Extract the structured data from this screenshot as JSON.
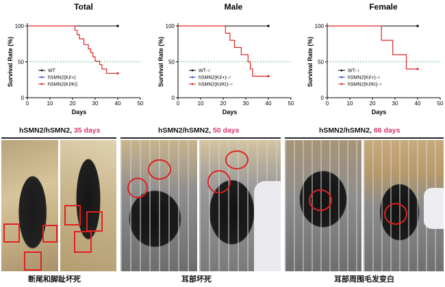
{
  "chart_data": [
    {
      "type": "line",
      "title": "Total",
      "xlabel": "Days",
      "ylabel": "Survival Rate (%)",
      "xlim": [
        0,
        50
      ],
      "ylim": [
        0,
        100
      ],
      "xticks": [
        0,
        10,
        20,
        30,
        40,
        50
      ],
      "yticks": [
        0,
        50,
        100
      ],
      "reference_line": 50,
      "series": [
        {
          "name": "WT",
          "color": "#000000",
          "x": [
            0,
            40
          ],
          "y": [
            100,
            100
          ]
        },
        {
          "name": "hSMN2(KI/+)",
          "color": "#2b4acb",
          "x": [
            0,
            40
          ],
          "y": [
            100,
            100
          ]
        },
        {
          "name": "hSMN2(KI/KI)",
          "color": "#e02020",
          "x": [
            0,
            20,
            21,
            22,
            23,
            25,
            27,
            28,
            29,
            30,
            32,
            33,
            35,
            40
          ],
          "y": [
            100,
            100,
            94,
            88,
            82,
            74,
            68,
            63,
            57,
            51,
            46,
            40,
            34,
            34
          ]
        }
      ]
    },
    {
      "type": "line",
      "title": "Male",
      "xlabel": "Days",
      "ylabel": "Survival Rate (%)",
      "xlim": [
        0,
        50
      ],
      "ylim": [
        0,
        100
      ],
      "xticks": [
        0,
        10,
        20,
        30,
        40,
        50
      ],
      "yticks": [
        0,
        50,
        100
      ],
      "reference_line": 50,
      "series": [
        {
          "name": "WT-♂",
          "color": "#000000",
          "x": [
            0,
            40
          ],
          "y": [
            100,
            100
          ]
        },
        {
          "name": "hSMN2(KI/+)-♂",
          "color": "#2b4acb",
          "x": [
            0,
            40
          ],
          "y": [
            100,
            100
          ]
        },
        {
          "name": "hSMN2(KI/KI)-♂",
          "color": "#e02020",
          "x": [
            0,
            20,
            21,
            23,
            25,
            28,
            31,
            32,
            33,
            35,
            40
          ],
          "y": [
            100,
            100,
            90,
            80,
            70,
            60,
            50,
            40,
            30,
            30,
            30
          ]
        }
      ]
    },
    {
      "type": "line",
      "title": "Female",
      "xlabel": "Days",
      "ylabel": "Survival Rate (%)",
      "xlim": [
        0,
        50
      ],
      "ylim": [
        0,
        100
      ],
      "xticks": [
        0,
        10,
        20,
        30,
        40,
        50
      ],
      "yticks": [
        0,
        50,
        100
      ],
      "reference_line": 50,
      "series": [
        {
          "name": "WT-♀",
          "color": "#000000",
          "x": [
            0,
            40
          ],
          "y": [
            100,
            100
          ]
        },
        {
          "name": "hSMN2(KI/+)-♀",
          "color": "#2b4acb",
          "x": [
            0,
            40
          ],
          "y": [
            100,
            100
          ]
        },
        {
          "name": "hSMN2(KI/KI)-♀",
          "color": "#e02020",
          "x": [
            0,
            23,
            24,
            29,
            35,
            40
          ],
          "y": [
            100,
            100,
            80,
            60,
            40,
            40
          ]
        }
      ]
    }
  ],
  "captions": [
    {
      "prefix": "hSMN2/hSMN2, ",
      "days": "35 days"
    },
    {
      "prefix": "hSMN2/hSMN2, ",
      "days": "50 days"
    },
    {
      "prefix": "hSMN2/hSMN2, ",
      "days": "66 days"
    }
  ],
  "photo_labels": [
    "断尾和脚趾坏死",
    "耳部坏死",
    "耳部周围毛发变白"
  ],
  "colors": {
    "highlight": "#e02020",
    "days_accent": "#d6336c"
  }
}
